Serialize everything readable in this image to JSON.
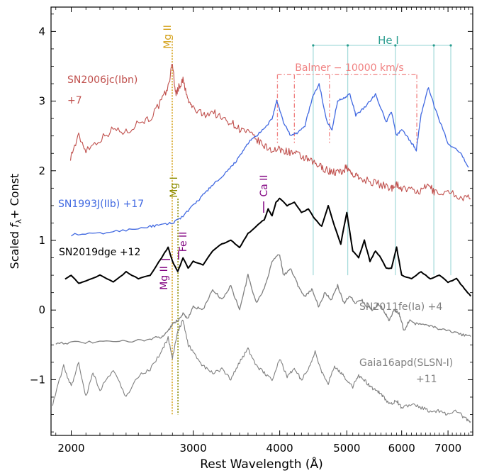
{
  "chart_data": {
    "type": "line",
    "xlabel": "Rest Wavelength (Å)",
    "ylabel_prefix": "Scaled ",
    "ylabel_f": "f",
    "ylabel_sub": "λ",
    "ylabel_suffix": "+ Const",
    "x_scale": "log",
    "xlim": [
      1870,
      7600
    ],
    "ylim": [
      -1.8,
      4.35
    ],
    "xticks": [
      2000,
      3000,
      4000,
      5000,
      6000,
      7000
    ],
    "xtick_labels": [
      "2000",
      "3000",
      "4000",
      "5000",
      "6000",
      "7000"
    ],
    "yticks": [
      -1,
      0,
      1,
      2,
      3,
      4
    ],
    "ytick_labels": [
      "−1",
      "0",
      "1",
      "2",
      "3",
      "4"
    ],
    "grid": false,
    "series": [
      {
        "name": "SN2006jc(Ibn) +7",
        "label_lines": [
          "SN2006jc(Ibn)",
          "+7"
        ],
        "color": "#c0504d",
        "x": [
          1995,
          2050,
          2100,
          2200,
          2300,
          2400,
          2500,
          2600,
          2700,
          2760,
          2800,
          2830,
          2860,
          2900,
          2950,
          3000,
          3100,
          3200,
          3300,
          3400,
          3500,
          3600,
          3700,
          3800,
          3900,
          4000,
          4100,
          4200,
          4300,
          4400,
          4500,
          4600,
          4700,
          4800,
          4900,
          5000,
          5100,
          5200,
          5400,
          5600,
          5800,
          5880,
          6000,
          6200,
          6400,
          6560,
          6700,
          7000,
          7300,
          7550
        ],
        "y": [
          2.2,
          2.5,
          2.3,
          2.45,
          2.6,
          2.55,
          2.7,
          2.75,
          3.0,
          3.2,
          3.55,
          3.1,
          3.2,
          3.3,
          3.0,
          2.9,
          2.8,
          2.85,
          2.75,
          2.7,
          2.6,
          2.55,
          2.45,
          2.35,
          2.3,
          2.3,
          2.28,
          2.25,
          2.2,
          2.15,
          2.1,
          2.05,
          2.0,
          1.98,
          1.98,
          2.05,
          1.95,
          1.9,
          1.85,
          1.8,
          1.75,
          1.82,
          1.75,
          1.72,
          1.7,
          1.8,
          1.68,
          1.7,
          1.62,
          1.6
        ]
      },
      {
        "name": "SN1993J(IIb) +17",
        "label_lines": [
          "SN1993J(IIb) +17"
        ],
        "color": "#4169e1",
        "x": [
          2000,
          2200,
          2400,
          2600,
          2700,
          2800,
          2900,
          3000,
          3100,
          3200,
          3300,
          3400,
          3500,
          3600,
          3700,
          3800,
          3900,
          3960,
          4050,
          4150,
          4250,
          4350,
          4460,
          4560,
          4680,
          4760,
          4850,
          4950,
          5050,
          5150,
          5300,
          5500,
          5700,
          5800,
          5900,
          6000,
          6200,
          6300,
          6400,
          6560,
          6700,
          7000,
          7300,
          7500
        ],
        "y": [
          1.08,
          1.1,
          1.15,
          1.2,
          1.22,
          1.25,
          1.35,
          1.5,
          1.65,
          1.8,
          1.9,
          2.05,
          2.2,
          2.4,
          2.5,
          2.6,
          2.75,
          3.0,
          2.7,
          2.5,
          2.55,
          2.65,
          3.05,
          3.25,
          2.7,
          2.6,
          3.0,
          3.05,
          3.1,
          2.8,
          2.9,
          3.1,
          2.7,
          2.85,
          2.5,
          2.6,
          2.4,
          2.3,
          2.8,
          3.2,
          2.9,
          2.4,
          2.25,
          2.05
        ]
      },
      {
        "name": "SN2019dge +12",
        "label_lines": [
          "SN2019dge +12"
        ],
        "color": "#000000",
        "x": [
          1960,
          2000,
          2050,
          2100,
          2200,
          2300,
          2400,
          2500,
          2600,
          2700,
          2760,
          2800,
          2850,
          2900,
          2950,
          3000,
          3100,
          3200,
          3300,
          3400,
          3500,
          3600,
          3700,
          3800,
          3850,
          3900,
          3950,
          4000,
          4100,
          4200,
          4300,
          4400,
          4500,
          4600,
          4700,
          4800,
          4900,
          5000,
          5100,
          5200,
          5300,
          5400,
          5500,
          5600,
          5700,
          5800,
          5900,
          6000,
          6200,
          6400,
          6600,
          6800,
          7000,
          7200,
          7400,
          7550
        ],
        "y": [
          0.45,
          0.5,
          0.38,
          0.42,
          0.5,
          0.4,
          0.55,
          0.45,
          0.5,
          0.75,
          0.9,
          0.7,
          0.55,
          0.75,
          0.6,
          0.7,
          0.65,
          0.85,
          0.95,
          1.0,
          0.9,
          1.1,
          1.2,
          1.3,
          1.45,
          1.35,
          1.55,
          1.6,
          1.5,
          1.55,
          1.4,
          1.45,
          1.3,
          1.2,
          1.5,
          1.2,
          0.95,
          1.4,
          0.85,
          0.75,
          1.0,
          0.7,
          0.85,
          0.75,
          0.6,
          0.6,
          0.9,
          0.5,
          0.45,
          0.55,
          0.45,
          0.5,
          0.4,
          0.45,
          0.3,
          0.2
        ]
      },
      {
        "name": "SN2011fe(Ia) +4",
        "label_lines": [
          "SN2011fe(Ia) +4"
        ],
        "color": "#808080",
        "x": [
          1900,
          2000,
          2200,
          2400,
          2600,
          2700,
          2760,
          2800,
          2850,
          2900,
          2950,
          3000,
          3100,
          3200,
          3300,
          3400,
          3500,
          3600,
          3700,
          3800,
          3900,
          4000,
          4050,
          4150,
          4250,
          4350,
          4450,
          4550,
          4650,
          4750,
          4850,
          4950,
          5050,
          5150,
          5250,
          5350,
          5450,
          5550,
          5650,
          5750,
          5850,
          5950,
          6050,
          6150,
          6300,
          6500,
          6700,
          7000,
          7300,
          7550
        ],
        "y": [
          -0.47,
          -0.47,
          -0.46,
          -0.45,
          -0.42,
          -0.38,
          -0.3,
          -0.2,
          -0.15,
          -0.05,
          -0.12,
          0.05,
          0.0,
          0.3,
          0.15,
          0.35,
          0.0,
          0.5,
          0.1,
          0.3,
          0.7,
          0.8,
          0.5,
          0.6,
          0.35,
          0.2,
          0.3,
          0.05,
          0.25,
          0.15,
          0.35,
          0.1,
          0.2,
          0.1,
          0.15,
          0.05,
          0.0,
          0.1,
          0.0,
          -0.15,
          0.0,
          -0.05,
          -0.3,
          -0.15,
          -0.2,
          -0.2,
          -0.25,
          -0.3,
          -0.35,
          -0.38
        ]
      },
      {
        "name": "Gaia16apd(SLSN-I) +11",
        "label_lines": [
          "Gaia16apd(SLSN-I)",
          "+11"
        ],
        "color": "#808080",
        "x": [
          1880,
          1950,
          2000,
          2050,
          2100,
          2150,
          2200,
          2300,
          2400,
          2500,
          2600,
          2700,
          2760,
          2800,
          2850,
          2900,
          2950,
          3000,
          3100,
          3200,
          3300,
          3400,
          3500,
          3600,
          3700,
          3800,
          3900,
          4000,
          4100,
          4200,
          4300,
          4400,
          4500,
          4600,
          4700,
          4800,
          4900,
          5000,
          5100,
          5200,
          5300,
          5400,
          5500,
          5600,
          5700,
          5800,
          5900,
          6000,
          6200,
          6400,
          6600,
          6800,
          7000,
          7200,
          7400,
          7550
        ],
        "y": [
          -1.35,
          -0.8,
          -1.1,
          -0.75,
          -1.25,
          -0.9,
          -1.15,
          -0.85,
          -1.25,
          -0.95,
          -0.85,
          -0.6,
          -0.4,
          -0.7,
          -0.3,
          -0.15,
          -0.5,
          -0.6,
          -0.8,
          -0.9,
          -0.85,
          -1.0,
          -0.75,
          -0.55,
          -0.8,
          -0.9,
          -1.0,
          -0.7,
          -0.95,
          -0.85,
          -1.0,
          -0.85,
          -0.6,
          -0.9,
          -1.05,
          -0.8,
          -0.9,
          -1.0,
          -1.1,
          -0.95,
          -1.0,
          -1.1,
          -1.15,
          -1.2,
          -1.3,
          -1.35,
          -1.3,
          -1.4,
          -1.35,
          -1.4,
          -1.45,
          -1.45,
          -1.5,
          -1.45,
          -1.55,
          -1.6
        ]
      }
    ],
    "annotations": {
      "balmer_label": "Balmer − 10000 km/s",
      "balmer_color": "#f08080",
      "balmer_lines": [
        3970,
        4200,
        4720,
        6310
      ],
      "hei_label": "He I",
      "hei_color": "#2a9d8f",
      "hei_lines": [
        4471,
        5015,
        5876,
        6678,
        7065
      ],
      "mg2_label": "Mg II",
      "mg2_color": "#d4a017",
      "mg2_x": 2798,
      "mg1_label": "Mg I",
      "mg1_color": "#8b8b00",
      "mg1_x": 2852,
      "purple_color": "#800080",
      "mg2_small": "Mg II",
      "fe2": "Fe II",
      "ca2": "Ca II"
    }
  }
}
